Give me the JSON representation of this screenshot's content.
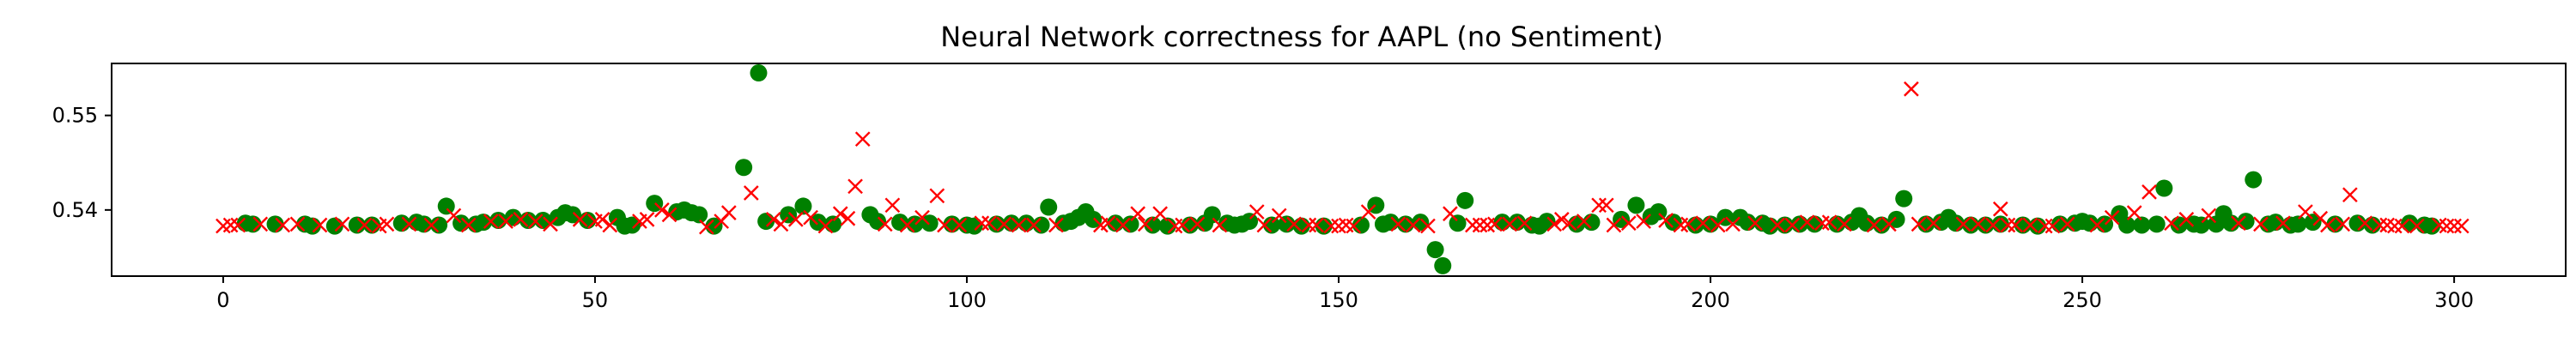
{
  "chart_data": {
    "type": "scatter",
    "title": "Neural Network correctness for AAPL (no Sentiment)",
    "xlabel": "",
    "ylabel": "",
    "xlim": [
      -15,
      315
    ],
    "ylim": [
      0.533,
      0.5555
    ],
    "xticks": [
      0,
      50,
      100,
      150,
      200,
      250,
      300
    ],
    "yticks": [
      0.54,
      0.55
    ],
    "ytick_labels": [
      "0.54",
      "0.55"
    ],
    "grid": false,
    "colors": {
      "green": "#008000",
      "red": "#ff0000"
    },
    "series": [
      {
        "marker": "circle",
        "color": "#008000",
        "points": [
          [
            3,
            0.5386
          ],
          [
            4,
            0.5385
          ],
          [
            7,
            0.5385
          ],
          [
            11,
            0.5385
          ],
          [
            12,
            0.5383
          ],
          [
            15,
            0.5383
          ],
          [
            18,
            0.5384
          ],
          [
            20,
            0.5384
          ],
          [
            24,
            0.5386
          ],
          [
            26,
            0.5387
          ],
          [
            27,
            0.5385
          ],
          [
            29,
            0.5384
          ],
          [
            30,
            0.5404
          ],
          [
            32,
            0.5386
          ],
          [
            34,
            0.5385
          ],
          [
            35,
            0.5387
          ],
          [
            37,
            0.5389
          ],
          [
            39,
            0.5392
          ],
          [
            41,
            0.5389
          ],
          [
            43,
            0.5389
          ],
          [
            45,
            0.5392
          ],
          [
            46,
            0.5397
          ],
          [
            47,
            0.5395
          ],
          [
            49,
            0.5389
          ],
          [
            53,
            0.5392
          ],
          [
            54,
            0.5383
          ],
          [
            55,
            0.5384
          ],
          [
            58,
            0.5407
          ],
          [
            61,
            0.5398
          ],
          [
            62,
            0.54
          ],
          [
            63,
            0.5397
          ],
          [
            64,
            0.5395
          ],
          [
            66,
            0.5383
          ],
          [
            70,
            0.5445
          ],
          [
            72,
            0.5545
          ],
          [
            73,
            0.5388
          ],
          [
            76,
            0.5395
          ],
          [
            78,
            0.5404
          ],
          [
            80,
            0.5387
          ],
          [
            82,
            0.5385
          ],
          [
            87,
            0.5395
          ],
          [
            88,
            0.5388
          ],
          [
            91,
            0.5387
          ],
          [
            93,
            0.5385
          ],
          [
            95,
            0.5386
          ],
          [
            98,
            0.5385
          ],
          [
            100,
            0.5384
          ],
          [
            101,
            0.5383
          ],
          [
            104,
            0.5385
          ],
          [
            106,
            0.5386
          ],
          [
            108,
            0.5386
          ],
          [
            110,
            0.5384
          ],
          [
            111,
            0.5403
          ],
          [
            113,
            0.5386
          ],
          [
            114,
            0.5388
          ],
          [
            115,
            0.5392
          ],
          [
            116,
            0.5398
          ],
          [
            117,
            0.539
          ],
          [
            120,
            0.5386
          ],
          [
            122,
            0.5385
          ],
          [
            125,
            0.5384
          ],
          [
            127,
            0.5383
          ],
          [
            130,
            0.5384
          ],
          [
            132,
            0.5386
          ],
          [
            133,
            0.5395
          ],
          [
            135,
            0.5386
          ],
          [
            136,
            0.5384
          ],
          [
            137,
            0.5385
          ],
          [
            138,
            0.5388
          ],
          [
            141,
            0.5384
          ],
          [
            143,
            0.5385
          ],
          [
            145,
            0.5383
          ],
          [
            148,
            0.5383
          ],
          [
            153,
            0.5384
          ],
          [
            155,
            0.5405
          ],
          [
            156,
            0.5385
          ],
          [
            157,
            0.5387
          ],
          [
            159,
            0.5385
          ],
          [
            161,
            0.5387
          ],
          [
            163,
            0.5358
          ],
          [
            164,
            0.5341
          ],
          [
            166,
            0.5386
          ],
          [
            167,
            0.541
          ],
          [
            172,
            0.5387
          ],
          [
            174,
            0.5387
          ],
          [
            176,
            0.5384
          ],
          [
            177,
            0.5383
          ],
          [
            178,
            0.5388
          ],
          [
            182,
            0.5385
          ],
          [
            184,
            0.5387
          ],
          [
            188,
            0.539
          ],
          [
            190,
            0.5405
          ],
          [
            192,
            0.5393
          ],
          [
            193,
            0.5398
          ],
          [
            195,
            0.5387
          ],
          [
            198,
            0.5384
          ],
          [
            200,
            0.5385
          ],
          [
            202,
            0.5392
          ],
          [
            204,
            0.5392
          ],
          [
            205,
            0.5387
          ],
          [
            207,
            0.5386
          ],
          [
            208,
            0.5383
          ],
          [
            210,
            0.5384
          ],
          [
            212,
            0.5385
          ],
          [
            214,
            0.5385
          ],
          [
            217,
            0.5385
          ],
          [
            219,
            0.5387
          ],
          [
            220,
            0.5394
          ],
          [
            221,
            0.5386
          ],
          [
            223,
            0.5384
          ],
          [
            225,
            0.539
          ],
          [
            226,
            0.5412
          ],
          [
            229,
            0.5385
          ],
          [
            231,
            0.5387
          ],
          [
            232,
            0.5392
          ],
          [
            233,
            0.5386
          ],
          [
            235,
            0.5384
          ],
          [
            237,
            0.5384
          ],
          [
            239,
            0.5385
          ],
          [
            242,
            0.5384
          ],
          [
            244,
            0.5383
          ],
          [
            247,
            0.5385
          ],
          [
            249,
            0.5386
          ],
          [
            250,
            0.5388
          ],
          [
            251,
            0.5386
          ],
          [
            253,
            0.5385
          ],
          [
            255,
            0.5396
          ],
          [
            256,
            0.5384
          ],
          [
            258,
            0.5384
          ],
          [
            260,
            0.5385
          ],
          [
            261,
            0.5423
          ],
          [
            263,
            0.5384
          ],
          [
            265,
            0.5385
          ],
          [
            266,
            0.5384
          ],
          [
            268,
            0.5385
          ],
          [
            269,
            0.5396
          ],
          [
            270,
            0.5386
          ],
          [
            272,
            0.5388
          ],
          [
            273,
            0.5432
          ],
          [
            275,
            0.5385
          ],
          [
            276,
            0.5387
          ],
          [
            278,
            0.5384
          ],
          [
            279,
            0.5385
          ],
          [
            281,
            0.5387
          ],
          [
            284,
            0.5385
          ],
          [
            287,
            0.5386
          ],
          [
            289,
            0.5384
          ],
          [
            294,
            0.5386
          ],
          [
            296,
            0.5384
          ],
          [
            297,
            0.5383
          ]
        ]
      },
      {
        "marker": "x",
        "color": "#ff0000",
        "points": [
          [
            0,
            0.5383
          ],
          [
            1,
            0.5384
          ],
          [
            2,
            0.5384
          ],
          [
            5,
            0.5385
          ],
          [
            8,
            0.5384
          ],
          [
            10,
            0.5385
          ],
          [
            13,
            0.5384
          ],
          [
            16,
            0.5385
          ],
          [
            19,
            0.5384
          ],
          [
            21,
            0.5383
          ],
          [
            22,
            0.5385
          ],
          [
            25,
            0.5385
          ],
          [
            28,
            0.5384
          ],
          [
            31,
            0.5394
          ],
          [
            33,
            0.5384
          ],
          [
            36,
            0.5388
          ],
          [
            38,
            0.5388
          ],
          [
            40,
            0.539
          ],
          [
            42,
            0.5388
          ],
          [
            44,
            0.5385
          ],
          [
            48,
            0.539
          ],
          [
            50,
            0.5388
          ],
          [
            51,
            0.539
          ],
          [
            52,
            0.5384
          ],
          [
            56,
            0.5388
          ],
          [
            57,
            0.539
          ],
          [
            59,
            0.54
          ],
          [
            60,
            0.5395
          ],
          [
            65,
            0.5382
          ],
          [
            67,
            0.5388
          ],
          [
            68,
            0.5397
          ],
          [
            71,
            0.5418
          ],
          [
            74,
            0.539
          ],
          [
            75,
            0.5385
          ],
          [
            77,
            0.539
          ],
          [
            79,
            0.5392
          ],
          [
            81,
            0.5383
          ],
          [
            83,
            0.5396
          ],
          [
            84,
            0.5391
          ],
          [
            85,
            0.5425
          ],
          [
            86,
            0.5475
          ],
          [
            89,
            0.5385
          ],
          [
            90,
            0.5405
          ],
          [
            92,
            0.5384
          ],
          [
            94,
            0.5392
          ],
          [
            96,
            0.5415
          ],
          [
            97,
            0.5384
          ],
          [
            99,
            0.5384
          ],
          [
            102,
            0.5386
          ],
          [
            103,
            0.5386
          ],
          [
            105,
            0.5385
          ],
          [
            107,
            0.5384
          ],
          [
            109,
            0.5384
          ],
          [
            112,
            0.5384
          ],
          [
            118,
            0.5384
          ],
          [
            119,
            0.5386
          ],
          [
            121,
            0.5384
          ],
          [
            123,
            0.5396
          ],
          [
            124,
            0.5385
          ],
          [
            126,
            0.5396
          ],
          [
            128,
            0.5383
          ],
          [
            129,
            0.5384
          ],
          [
            131,
            0.5385
          ],
          [
            134,
            0.5384
          ],
          [
            139,
            0.5398
          ],
          [
            140,
            0.5384
          ],
          [
            142,
            0.5394
          ],
          [
            144,
            0.5385
          ],
          [
            146,
            0.5384
          ],
          [
            147,
            0.5384
          ],
          [
            149,
            0.5383
          ],
          [
            150,
            0.5383
          ],
          [
            151,
            0.5384
          ],
          [
            152,
            0.5383
          ],
          [
            154,
            0.5398
          ],
          [
            158,
            0.5385
          ],
          [
            160,
            0.5384
          ],
          [
            162,
            0.5383
          ],
          [
            165,
            0.5396
          ],
          [
            168,
            0.5384
          ],
          [
            169,
            0.5384
          ],
          [
            170,
            0.5384
          ],
          [
            171,
            0.5385
          ],
          [
            173,
            0.5385
          ],
          [
            175,
            0.5386
          ],
          [
            179,
            0.5385
          ],
          [
            180,
            0.539
          ],
          [
            181,
            0.5386
          ],
          [
            183,
            0.5388
          ],
          [
            185,
            0.5405
          ],
          [
            186,
            0.5405
          ],
          [
            187,
            0.5384
          ],
          [
            189,
            0.5386
          ],
          [
            191,
            0.5388
          ],
          [
            194,
            0.5389
          ],
          [
            196,
            0.5384
          ],
          [
            197,
            0.5385
          ],
          [
            199,
            0.5386
          ],
          [
            201,
            0.5384
          ],
          [
            203,
            0.5385
          ],
          [
            206,
            0.5386
          ],
          [
            209,
            0.5384
          ],
          [
            211,
            0.5384
          ],
          [
            213,
            0.5387
          ],
          [
            215,
            0.5386
          ],
          [
            216,
            0.5387
          ],
          [
            218,
            0.5385
          ],
          [
            222,
            0.5384
          ],
          [
            224,
            0.5385
          ],
          [
            227,
            0.5528
          ],
          [
            228,
            0.5385
          ],
          [
            230,
            0.5386
          ],
          [
            234,
            0.5385
          ],
          [
            236,
            0.5385
          ],
          [
            238,
            0.5384
          ],
          [
            239,
            0.5401
          ],
          [
            240,
            0.5384
          ],
          [
            241,
            0.5384
          ],
          [
            243,
            0.5384
          ],
          [
            245,
            0.5383
          ],
          [
            246,
            0.5383
          ],
          [
            248,
            0.5385
          ],
          [
            252,
            0.5384
          ],
          [
            254,
            0.5392
          ],
          [
            257,
            0.5397
          ],
          [
            259,
            0.5419
          ],
          [
            262,
            0.5386
          ],
          [
            264,
            0.539
          ],
          [
            267,
            0.5394
          ],
          [
            271,
            0.5386
          ],
          [
            274,
            0.5385
          ],
          [
            277,
            0.5386
          ],
          [
            280,
            0.5398
          ],
          [
            282,
            0.5391
          ],
          [
            283,
            0.5384
          ],
          [
            285,
            0.5385
          ],
          [
            286,
            0.5416
          ],
          [
            288,
            0.5386
          ],
          [
            290,
            0.5384
          ],
          [
            291,
            0.5384
          ],
          [
            292,
            0.5383
          ],
          [
            293,
            0.5383
          ],
          [
            295,
            0.5383
          ],
          [
            298,
            0.5384
          ],
          [
            299,
            0.5383
          ],
          [
            300,
            0.5383
          ],
          [
            301,
            0.5383
          ]
        ]
      }
    ]
  }
}
